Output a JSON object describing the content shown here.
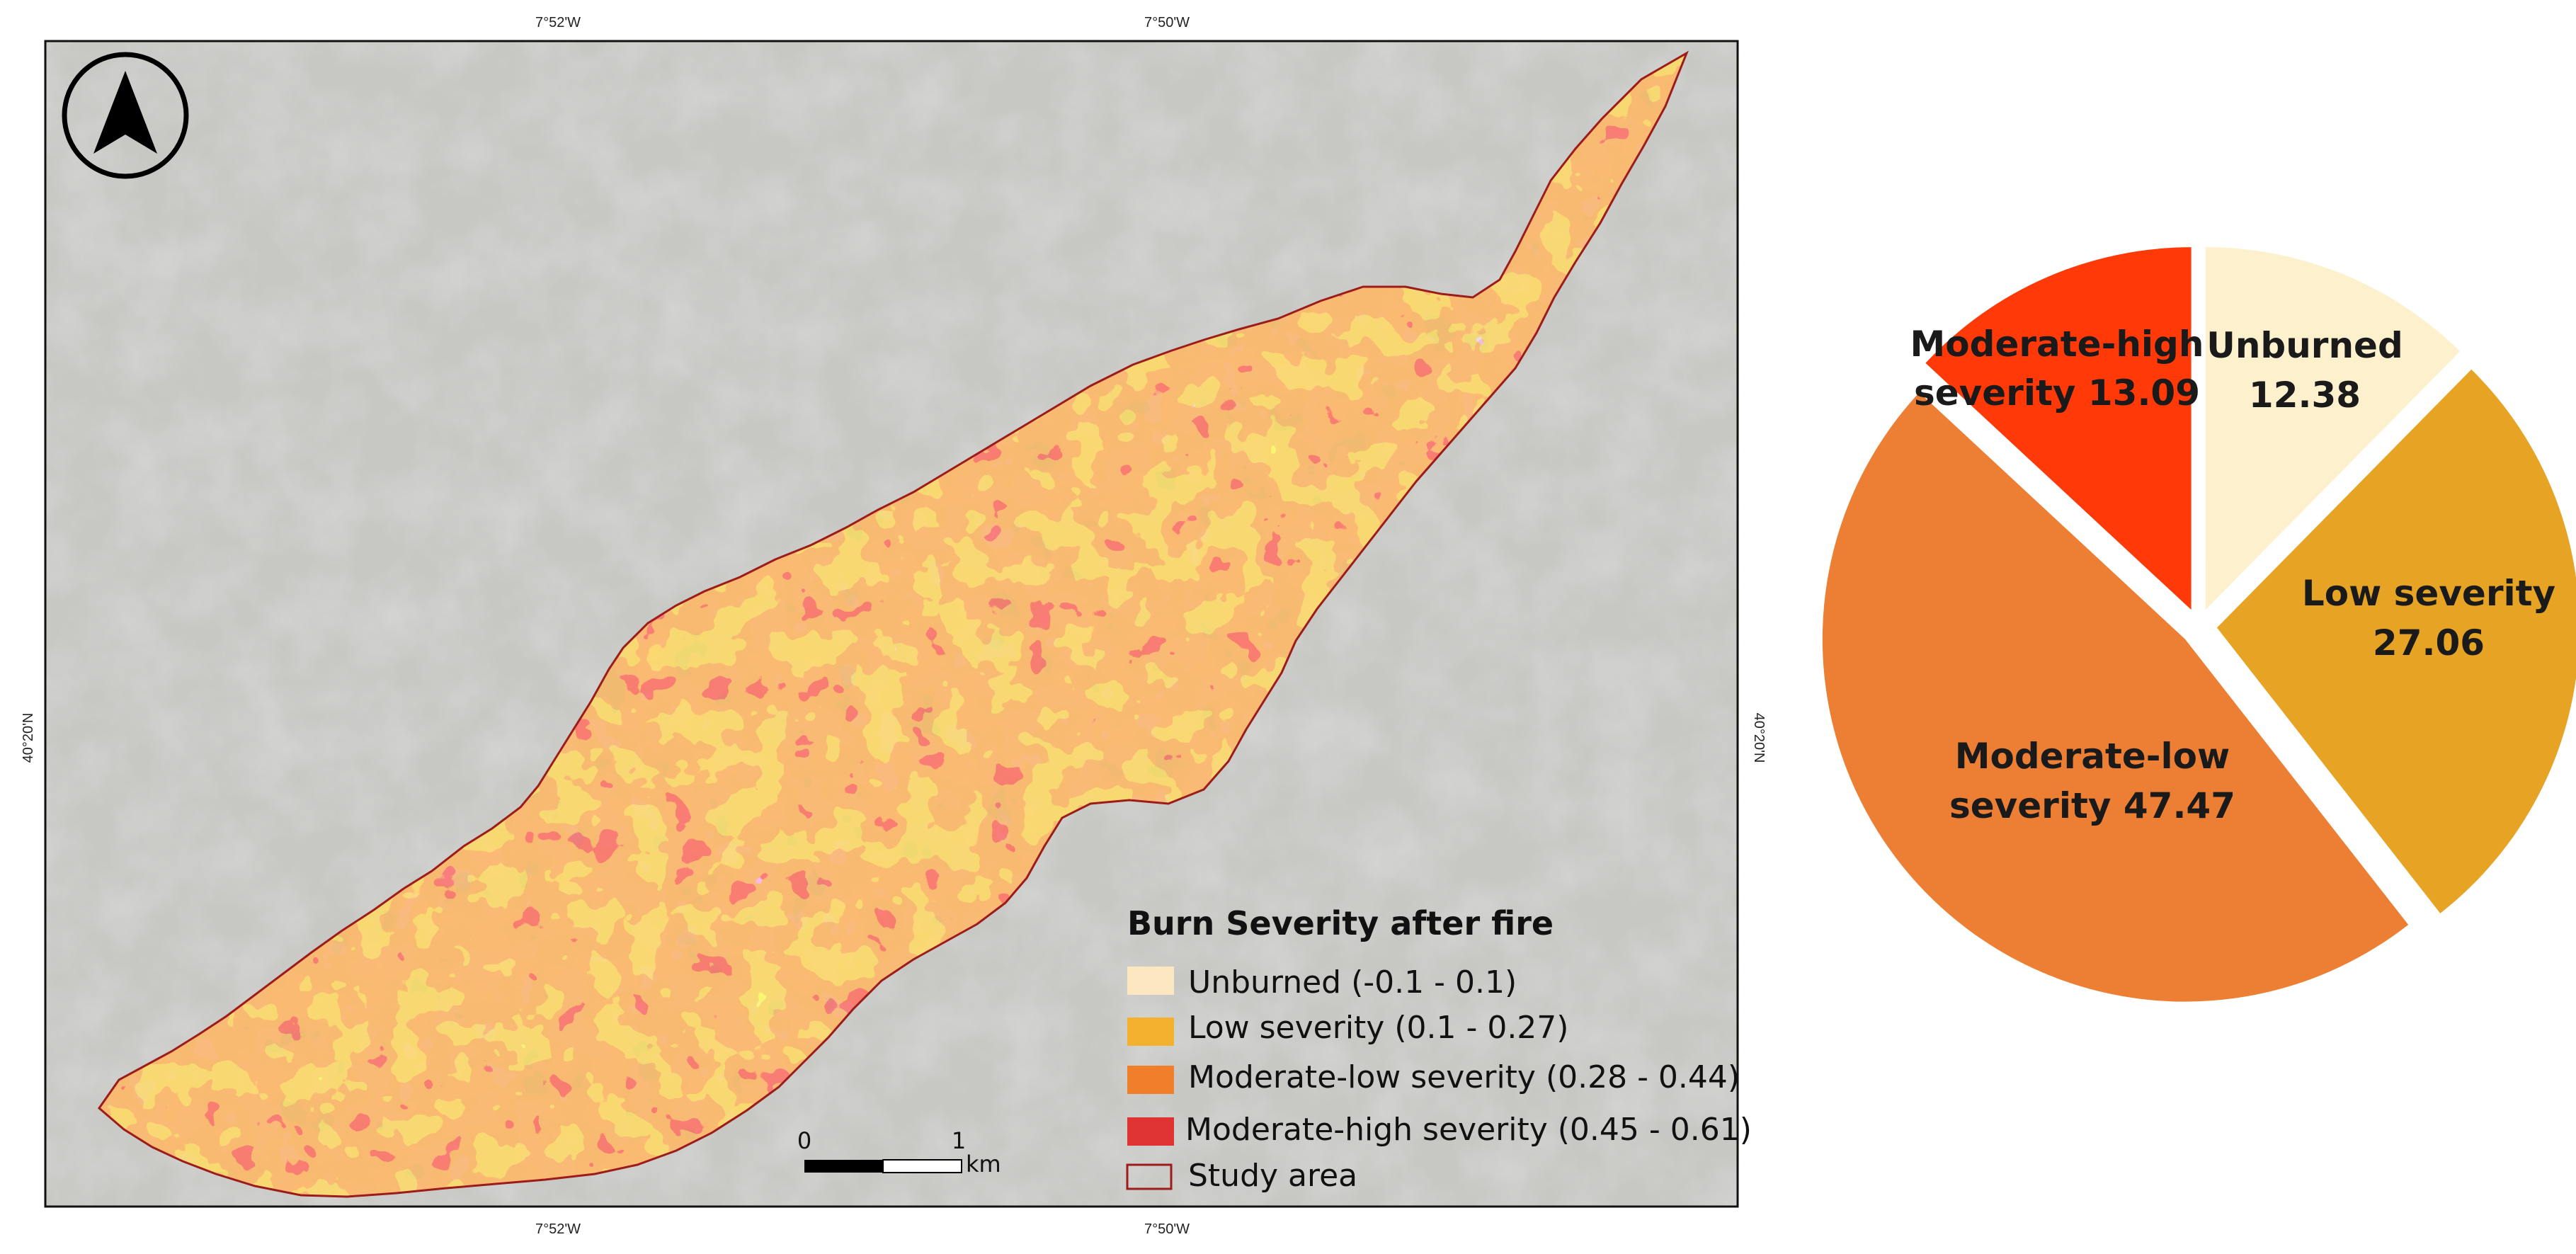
{
  "map": {
    "coords": {
      "top": [
        "7°52'W",
        "7°50'W"
      ],
      "bottom": [
        "7°52'W",
        "7°50'W"
      ],
      "left": "40°20'N",
      "right": "40°20'N"
    },
    "north_arrow": "north-arrow-icon",
    "scale_bar": {
      "start": "0",
      "end": "1",
      "unit": "km"
    },
    "legend": {
      "title": "Burn Severity after fire",
      "items": [
        {
          "label": "Unburned (-0.1 - 0.1)",
          "color": "#fbe8c0"
        },
        {
          "label": "Low severity (0.1 - 0.27)",
          "color": "#f4b12e"
        },
        {
          "label": "Moderate-low severity (0.28 - 0.44)",
          "color": "#f07e2a"
        },
        {
          "label": "Moderate-high severity (0.45 - 0.61)",
          "color": "#e03434"
        },
        {
          "label": "Study area",
          "color": "#9c1b1b"
        }
      ]
    }
  },
  "chart_data": {
    "type": "pie",
    "slices": [
      {
        "name": "Unburned",
        "label_lines": [
          "Unburned",
          "12.38"
        ],
        "value": 12.38,
        "color": "#fdf0cd"
      },
      {
        "name": "Low severity",
        "label_lines": [
          "Low severity",
          "27.06"
        ],
        "value": 27.06,
        "color": "#e6a324"
      },
      {
        "name": "Moderate-low severity",
        "label_lines": [
          "Moderate-low",
          "severity 47.47"
        ],
        "value": 47.47,
        "color": "#ec7f34"
      },
      {
        "name": "Moderate-high severity",
        "label_lines": [
          "Moderate-high",
          "severity 13.09"
        ],
        "value": 13.09,
        "color": "#ff3a08"
      }
    ]
  }
}
